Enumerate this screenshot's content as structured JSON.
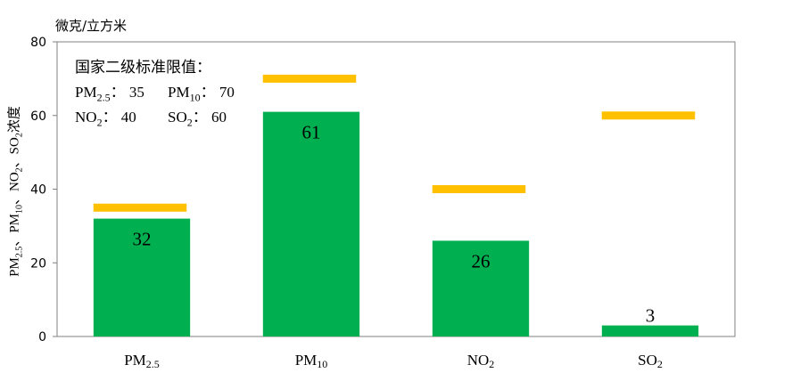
{
  "chart_data": {
    "type": "bar",
    "unit": "微克/立方米",
    "ylabel": {
      "parts": [
        {
          "text": "PM"
        },
        {
          "sub": "2.5"
        },
        {
          "text": "、PM"
        },
        {
          "sub": "10"
        },
        {
          "text": "、NO"
        },
        {
          "sub": "2"
        },
        {
          "text": "、SO"
        },
        {
          "sub": "2"
        },
        {
          "text": "浓度"
        }
      ]
    },
    "ylim": [
      0,
      80
    ],
    "yticks": [
      0,
      20,
      40,
      60,
      80
    ],
    "categories": [
      {
        "base": "PM",
        "sub": "2.5"
      },
      {
        "base": "PM",
        "sub": "10"
      },
      {
        "base": "NO",
        "sub": "2"
      },
      {
        "base": "SO",
        "sub": "2"
      }
    ],
    "values": [
      32,
      61,
      26,
      3
    ],
    "data_labels": [
      "32",
      "61",
      "26",
      "3"
    ],
    "standards": [
      35,
      70,
      40,
      60
    ],
    "standards_legend": {
      "title": "国家二级标准限值：",
      "items": [
        {
          "base": "PM",
          "sub": "2.5",
          "sep": "：",
          "value": "35"
        },
        {
          "base": "PM",
          "sub": "10",
          "sep": "：",
          "value": "70"
        },
        {
          "base": "NO",
          "sub": "2",
          "sep": "：",
          "value": "40"
        },
        {
          "base": "SO",
          "sub": "2",
          "sep": "：",
          "value": "60"
        }
      ]
    },
    "grid": false,
    "colors": {
      "bar": "#00b050",
      "standard": "#ffc000",
      "axis": "#808080"
    }
  }
}
